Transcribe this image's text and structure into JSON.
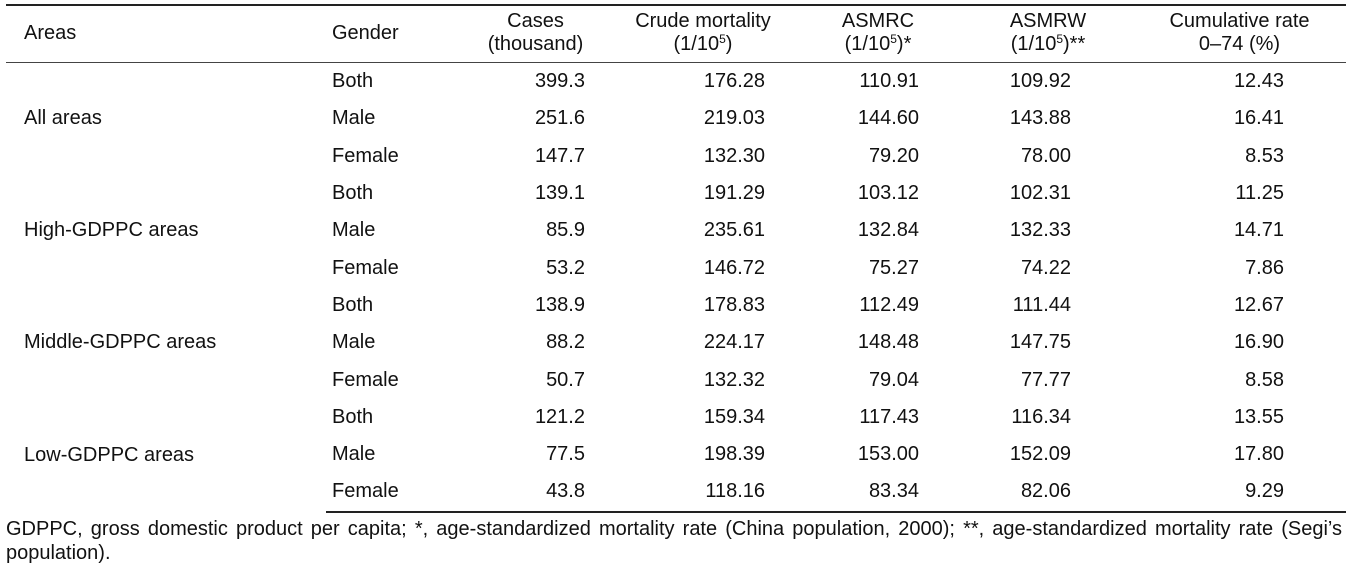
{
  "headers": {
    "areas": "Areas",
    "gender": "Gender",
    "cases_line1": "Cases",
    "cases_line2": "(thousand)",
    "crude_line1": "Crude mortality",
    "crude_line2_pre": "(1/10",
    "crude_line2_sup": "5",
    "crude_line2_post": ")",
    "asmrc_line1": "ASMRC",
    "asmrc_line2_pre": "(1/10",
    "asmrc_line2_sup": "5",
    "asmrc_line2_post": ")*",
    "asmrw_line1": "ASMRW",
    "asmrw_line2_pre": "(1/10",
    "asmrw_line2_sup": "5",
    "asmrw_line2_post": ")**",
    "cum_line1": "Cumulative rate",
    "cum_line2": "0–74 (%)"
  },
  "groups": [
    {
      "area": "All areas",
      "rows": [
        {
          "gender": "Both",
          "cases": "399.3",
          "crude": "176.28",
          "asmrc": "110.91",
          "asmrw": "109.92",
          "cum": "12.43"
        },
        {
          "gender": "Male",
          "cases": "251.6",
          "crude": "219.03",
          "asmrc": "144.60",
          "asmrw": "143.88",
          "cum": "16.41"
        },
        {
          "gender": "Female",
          "cases": "147.7",
          "crude": "132.30",
          "asmrc": "79.20",
          "asmrw": "78.00",
          "cum": "8.53"
        }
      ]
    },
    {
      "area": "High-GDPPC areas",
      "rows": [
        {
          "gender": "Both",
          "cases": "139.1",
          "crude": "191.29",
          "asmrc": "103.12",
          "asmrw": "102.31",
          "cum": "11.25"
        },
        {
          "gender": "Male",
          "cases": "85.9",
          "crude": "235.61",
          "asmrc": "132.84",
          "asmrw": "132.33",
          "cum": "14.71"
        },
        {
          "gender": "Female",
          "cases": "53.2",
          "crude": "146.72",
          "asmrc": "75.27",
          "asmrw": "74.22",
          "cum": "7.86"
        }
      ]
    },
    {
      "area": "Middle-GDPPC areas",
      "rows": [
        {
          "gender": "Both",
          "cases": "138.9",
          "crude": "178.83",
          "asmrc": "112.49",
          "asmrw": "111.44",
          "cum": "12.67"
        },
        {
          "gender": "Male",
          "cases": "88.2",
          "crude": "224.17",
          "asmrc": "148.48",
          "asmrw": "147.75",
          "cum": "16.90"
        },
        {
          "gender": "Female",
          "cases": "50.7",
          "crude": "132.32",
          "asmrc": "79.04",
          "asmrw": "77.77",
          "cum": "8.58"
        }
      ]
    },
    {
      "area": "Low-GDPPC areas",
      "rows": [
        {
          "gender": "Both",
          "cases": "121.2",
          "crude": "159.34",
          "asmrc": "117.43",
          "asmrw": "116.34",
          "cum": "13.55"
        },
        {
          "gender": "Male",
          "cases": "77.5",
          "crude": "198.39",
          "asmrc": "153.00",
          "asmrw": "152.09",
          "cum": "17.80"
        },
        {
          "gender": "Female",
          "cases": "43.8",
          "crude": "118.16",
          "asmrc": "83.34",
          "asmrw": "82.06",
          "cum": "9.29"
        }
      ]
    }
  ],
  "footnote": "GDPPC, gross domestic product per capita; *, age-standardized mortality rate (China population, 2000); **, age-standardized mortality rate (Segi’s population)."
}
